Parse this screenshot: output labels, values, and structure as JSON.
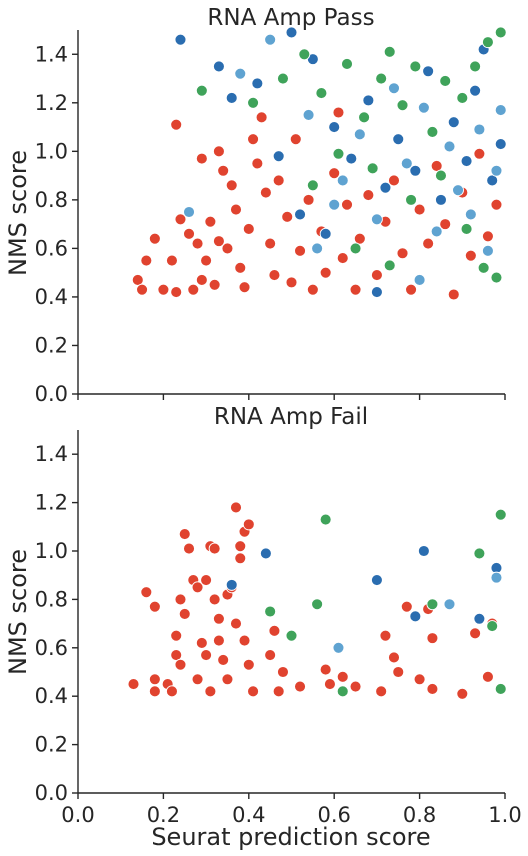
{
  "colors": {
    "red": "#e0432f",
    "green": "#3fa35a",
    "dark_blue": "#2a6db0",
    "light_blue": "#5fa3d1"
  },
  "chart_data": [
    {
      "type": "scatter",
      "title": "RNA Amp Pass",
      "ylabel": "NMS score",
      "xlabel": "",
      "xlim": [
        0.0,
        1.0
      ],
      "ylim": [
        0.0,
        1.5
      ],
      "xticks": [
        "0.0",
        "0.2",
        "0.4",
        "0.6",
        "0.8",
        "1.0"
      ],
      "yticks": [
        "0.0",
        "0.2",
        "0.4",
        "0.6",
        "0.8",
        "1.0",
        "1.2",
        "1.4"
      ],
      "show_xtick_labels": false,
      "grid": false,
      "points": [
        {
          "x": 0.16,
          "y": 0.55,
          "c": "red"
        },
        {
          "x": 0.14,
          "y": 0.47,
          "c": "red"
        },
        {
          "x": 0.15,
          "y": 0.43,
          "c": "red"
        },
        {
          "x": 0.18,
          "y": 0.64,
          "c": "red"
        },
        {
          "x": 0.2,
          "y": 0.43,
          "c": "red"
        },
        {
          "x": 0.22,
          "y": 0.55,
          "c": "red"
        },
        {
          "x": 0.23,
          "y": 0.42,
          "c": "red"
        },
        {
          "x": 0.24,
          "y": 0.72,
          "c": "red"
        },
        {
          "x": 0.26,
          "y": 0.66,
          "c": "red"
        },
        {
          "x": 0.28,
          "y": 0.62,
          "c": "red"
        },
        {
          "x": 0.27,
          "y": 0.43,
          "c": "red"
        },
        {
          "x": 0.29,
          "y": 0.47,
          "c": "red"
        },
        {
          "x": 0.3,
          "y": 0.55,
          "c": "red"
        },
        {
          "x": 0.31,
          "y": 0.71,
          "c": "red"
        },
        {
          "x": 0.33,
          "y": 0.63,
          "c": "red"
        },
        {
          "x": 0.32,
          "y": 0.45,
          "c": "red"
        },
        {
          "x": 0.35,
          "y": 0.6,
          "c": "red"
        },
        {
          "x": 0.36,
          "y": 0.86,
          "c": "red"
        },
        {
          "x": 0.34,
          "y": 0.92,
          "c": "red"
        },
        {
          "x": 0.37,
          "y": 0.76,
          "c": "red"
        },
        {
          "x": 0.38,
          "y": 0.52,
          "c": "red"
        },
        {
          "x": 0.39,
          "y": 0.44,
          "c": "red"
        },
        {
          "x": 0.4,
          "y": 0.68,
          "c": "red"
        },
        {
          "x": 0.41,
          "y": 1.05,
          "c": "red"
        },
        {
          "x": 0.42,
          "y": 0.95,
          "c": "red"
        },
        {
          "x": 0.44,
          "y": 0.83,
          "c": "red"
        },
        {
          "x": 0.45,
          "y": 0.62,
          "c": "red"
        },
        {
          "x": 0.46,
          "y": 0.49,
          "c": "red"
        },
        {
          "x": 0.47,
          "y": 0.88,
          "c": "red"
        },
        {
          "x": 0.49,
          "y": 0.73,
          "c": "red"
        },
        {
          "x": 0.5,
          "y": 0.46,
          "c": "red"
        },
        {
          "x": 0.52,
          "y": 0.59,
          "c": "red"
        },
        {
          "x": 0.54,
          "y": 0.8,
          "c": "red"
        },
        {
          "x": 0.55,
          "y": 0.43,
          "c": "red"
        },
        {
          "x": 0.57,
          "y": 0.67,
          "c": "red"
        },
        {
          "x": 0.58,
          "y": 0.5,
          "c": "red"
        },
        {
          "x": 0.6,
          "y": 0.91,
          "c": "red"
        },
        {
          "x": 0.62,
          "y": 0.56,
          "c": "red"
        },
        {
          "x": 0.63,
          "y": 0.78,
          "c": "red"
        },
        {
          "x": 0.65,
          "y": 0.43,
          "c": "red"
        },
        {
          "x": 0.66,
          "y": 0.64,
          "c": "red"
        },
        {
          "x": 0.68,
          "y": 0.82,
          "c": "red"
        },
        {
          "x": 0.7,
          "y": 0.49,
          "c": "red"
        },
        {
          "x": 0.72,
          "y": 0.71,
          "c": "red"
        },
        {
          "x": 0.74,
          "y": 0.88,
          "c": "red"
        },
        {
          "x": 0.76,
          "y": 0.58,
          "c": "red"
        },
        {
          "x": 0.78,
          "y": 0.43,
          "c": "red"
        },
        {
          "x": 0.8,
          "y": 0.76,
          "c": "red"
        },
        {
          "x": 0.82,
          "y": 0.62,
          "c": "red"
        },
        {
          "x": 0.84,
          "y": 0.94,
          "c": "red"
        },
        {
          "x": 0.86,
          "y": 0.7,
          "c": "red"
        },
        {
          "x": 0.88,
          "y": 0.41,
          "c": "red"
        },
        {
          "x": 0.9,
          "y": 0.83,
          "c": "red"
        },
        {
          "x": 0.92,
          "y": 0.57,
          "c": "red"
        },
        {
          "x": 0.94,
          "y": 0.99,
          "c": "red"
        },
        {
          "x": 0.96,
          "y": 0.65,
          "c": "red"
        },
        {
          "x": 0.98,
          "y": 0.78,
          "c": "red"
        },
        {
          "x": 0.23,
          "y": 1.11,
          "c": "red"
        },
        {
          "x": 0.29,
          "y": 0.97,
          "c": "red"
        },
        {
          "x": 0.33,
          "y": 1.0,
          "c": "red"
        },
        {
          "x": 0.43,
          "y": 1.14,
          "c": "red"
        },
        {
          "x": 0.51,
          "y": 1.05,
          "c": "red"
        },
        {
          "x": 0.61,
          "y": 1.16,
          "c": "red"
        },
        {
          "x": 0.24,
          "y": 1.46,
          "c": "dark_blue"
        },
        {
          "x": 0.33,
          "y": 1.35,
          "c": "dark_blue"
        },
        {
          "x": 0.36,
          "y": 1.22,
          "c": "dark_blue"
        },
        {
          "x": 0.42,
          "y": 1.28,
          "c": "dark_blue"
        },
        {
          "x": 0.5,
          "y": 1.49,
          "c": "dark_blue"
        },
        {
          "x": 0.55,
          "y": 1.38,
          "c": "dark_blue"
        },
        {
          "x": 0.6,
          "y": 1.1,
          "c": "dark_blue"
        },
        {
          "x": 0.64,
          "y": 0.97,
          "c": "dark_blue"
        },
        {
          "x": 0.68,
          "y": 1.21,
          "c": "dark_blue"
        },
        {
          "x": 0.72,
          "y": 0.85,
          "c": "dark_blue"
        },
        {
          "x": 0.75,
          "y": 1.05,
          "c": "dark_blue"
        },
        {
          "x": 0.79,
          "y": 0.92,
          "c": "dark_blue"
        },
        {
          "x": 0.82,
          "y": 1.33,
          "c": "dark_blue"
        },
        {
          "x": 0.85,
          "y": 0.8,
          "c": "dark_blue"
        },
        {
          "x": 0.88,
          "y": 1.12,
          "c": "dark_blue"
        },
        {
          "x": 0.91,
          "y": 0.96,
          "c": "dark_blue"
        },
        {
          "x": 0.93,
          "y": 1.25,
          "c": "dark_blue"
        },
        {
          "x": 0.95,
          "y": 1.42,
          "c": "dark_blue"
        },
        {
          "x": 0.97,
          "y": 0.88,
          "c": "dark_blue"
        },
        {
          "x": 0.99,
          "y": 1.03,
          "c": "dark_blue"
        },
        {
          "x": 0.7,
          "y": 0.42,
          "c": "dark_blue"
        },
        {
          "x": 0.52,
          "y": 0.74,
          "c": "dark_blue"
        },
        {
          "x": 0.58,
          "y": 0.66,
          "c": "dark_blue"
        },
        {
          "x": 0.47,
          "y": 0.98,
          "c": "dark_blue"
        },
        {
          "x": 0.26,
          "y": 0.75,
          "c": "light_blue"
        },
        {
          "x": 0.38,
          "y": 1.32,
          "c": "light_blue"
        },
        {
          "x": 0.45,
          "y": 1.46,
          "c": "light_blue"
        },
        {
          "x": 0.54,
          "y": 1.15,
          "c": "light_blue"
        },
        {
          "x": 0.62,
          "y": 0.88,
          "c": "light_blue"
        },
        {
          "x": 0.66,
          "y": 1.07,
          "c": "light_blue"
        },
        {
          "x": 0.7,
          "y": 0.72,
          "c": "light_blue"
        },
        {
          "x": 0.74,
          "y": 1.26,
          "c": "light_blue"
        },
        {
          "x": 0.77,
          "y": 0.95,
          "c": "light_blue"
        },
        {
          "x": 0.81,
          "y": 1.18,
          "c": "light_blue"
        },
        {
          "x": 0.84,
          "y": 0.67,
          "c": "light_blue"
        },
        {
          "x": 0.87,
          "y": 1.02,
          "c": "light_blue"
        },
        {
          "x": 0.89,
          "y": 0.84,
          "c": "light_blue"
        },
        {
          "x": 0.92,
          "y": 0.74,
          "c": "light_blue"
        },
        {
          "x": 0.94,
          "y": 1.09,
          "c": "light_blue"
        },
        {
          "x": 0.96,
          "y": 0.59,
          "c": "light_blue"
        },
        {
          "x": 0.98,
          "y": 0.92,
          "c": "light_blue"
        },
        {
          "x": 0.99,
          "y": 1.17,
          "c": "light_blue"
        },
        {
          "x": 0.56,
          "y": 0.6,
          "c": "light_blue"
        },
        {
          "x": 0.6,
          "y": 0.78,
          "c": "light_blue"
        },
        {
          "x": 0.8,
          "y": 0.47,
          "c": "light_blue"
        },
        {
          "x": 0.29,
          "y": 1.25,
          "c": "green"
        },
        {
          "x": 0.41,
          "y": 1.2,
          "c": "green"
        },
        {
          "x": 0.48,
          "y": 1.3,
          "c": "green"
        },
        {
          "x": 0.53,
          "y": 1.4,
          "c": "green"
        },
        {
          "x": 0.57,
          "y": 1.24,
          "c": "green"
        },
        {
          "x": 0.63,
          "y": 1.36,
          "c": "green"
        },
        {
          "x": 0.67,
          "y": 1.14,
          "c": "green"
        },
        {
          "x": 0.71,
          "y": 1.3,
          "c": "green"
        },
        {
          "x": 0.73,
          "y": 1.41,
          "c": "green"
        },
        {
          "x": 0.76,
          "y": 1.19,
          "c": "green"
        },
        {
          "x": 0.79,
          "y": 1.35,
          "c": "green"
        },
        {
          "x": 0.83,
          "y": 1.08,
          "c": "green"
        },
        {
          "x": 0.86,
          "y": 1.29,
          "c": "green"
        },
        {
          "x": 0.9,
          "y": 1.22,
          "c": "green"
        },
        {
          "x": 0.93,
          "y": 1.35,
          "c": "green"
        },
        {
          "x": 0.96,
          "y": 1.45,
          "c": "green"
        },
        {
          "x": 0.99,
          "y": 1.49,
          "c": "green"
        },
        {
          "x": 0.55,
          "y": 0.86,
          "c": "green"
        },
        {
          "x": 0.61,
          "y": 0.99,
          "c": "green"
        },
        {
          "x": 0.69,
          "y": 0.93,
          "c": "green"
        },
        {
          "x": 0.78,
          "y": 0.8,
          "c": "green"
        },
        {
          "x": 0.85,
          "y": 0.9,
          "c": "green"
        },
        {
          "x": 0.91,
          "y": 0.68,
          "c": "green"
        },
        {
          "x": 0.95,
          "y": 0.52,
          "c": "green"
        },
        {
          "x": 0.98,
          "y": 0.48,
          "c": "green"
        },
        {
          "x": 0.65,
          "y": 0.6,
          "c": "green"
        },
        {
          "x": 0.73,
          "y": 0.53,
          "c": "green"
        }
      ]
    },
    {
      "type": "scatter",
      "title": "RNA Amp Fail",
      "ylabel": "NMS score",
      "xlabel": "Seurat prediction score",
      "xlim": [
        0.0,
        1.0
      ],
      "ylim": [
        0.0,
        1.5
      ],
      "xticks": [
        "0.0",
        "0.2",
        "0.4",
        "0.6",
        "0.8",
        "1.0"
      ],
      "yticks": [
        "0.0",
        "0.2",
        "0.4",
        "0.6",
        "0.8",
        "1.0",
        "1.2",
        "1.4"
      ],
      "show_xtick_labels": true,
      "grid": false,
      "points": [
        {
          "x": 0.13,
          "y": 0.45,
          "c": "red"
        },
        {
          "x": 0.16,
          "y": 0.83,
          "c": "red"
        },
        {
          "x": 0.18,
          "y": 0.77,
          "c": "red"
        },
        {
          "x": 0.18,
          "y": 0.47,
          "c": "red"
        },
        {
          "x": 0.18,
          "y": 0.42,
          "c": "red"
        },
        {
          "x": 0.21,
          "y": 0.45,
          "c": "red"
        },
        {
          "x": 0.22,
          "y": 0.42,
          "c": "red"
        },
        {
          "x": 0.23,
          "y": 0.65,
          "c": "red"
        },
        {
          "x": 0.23,
          "y": 0.57,
          "c": "red"
        },
        {
          "x": 0.24,
          "y": 0.53,
          "c": "red"
        },
        {
          "x": 0.24,
          "y": 0.8,
          "c": "red"
        },
        {
          "x": 0.25,
          "y": 1.07,
          "c": "red"
        },
        {
          "x": 0.25,
          "y": 0.74,
          "c": "red"
        },
        {
          "x": 0.26,
          "y": 1.01,
          "c": "red"
        },
        {
          "x": 0.27,
          "y": 0.88,
          "c": "red"
        },
        {
          "x": 0.28,
          "y": 0.85,
          "c": "red"
        },
        {
          "x": 0.28,
          "y": 0.47,
          "c": "red"
        },
        {
          "x": 0.29,
          "y": 0.62,
          "c": "red"
        },
        {
          "x": 0.3,
          "y": 0.88,
          "c": "red"
        },
        {
          "x": 0.3,
          "y": 0.57,
          "c": "red"
        },
        {
          "x": 0.31,
          "y": 1.02,
          "c": "red"
        },
        {
          "x": 0.31,
          "y": 0.42,
          "c": "red"
        },
        {
          "x": 0.32,
          "y": 0.8,
          "c": "red"
        },
        {
          "x": 0.32,
          "y": 1.01,
          "c": "red"
        },
        {
          "x": 0.33,
          "y": 0.72,
          "c": "red"
        },
        {
          "x": 0.33,
          "y": 0.63,
          "c": "red"
        },
        {
          "x": 0.34,
          "y": 0.55,
          "c": "red"
        },
        {
          "x": 0.35,
          "y": 0.82,
          "c": "red"
        },
        {
          "x": 0.35,
          "y": 0.47,
          "c": "red"
        },
        {
          "x": 0.36,
          "y": 0.85,
          "c": "red"
        },
        {
          "x": 0.37,
          "y": 1.18,
          "c": "red"
        },
        {
          "x": 0.37,
          "y": 0.7,
          "c": "red"
        },
        {
          "x": 0.38,
          "y": 0.97,
          "c": "red"
        },
        {
          "x": 0.38,
          "y": 1.02,
          "c": "red"
        },
        {
          "x": 0.39,
          "y": 1.08,
          "c": "red"
        },
        {
          "x": 0.39,
          "y": 0.63,
          "c": "red"
        },
        {
          "x": 0.4,
          "y": 1.11,
          "c": "red"
        },
        {
          "x": 0.4,
          "y": 0.53,
          "c": "red"
        },
        {
          "x": 0.41,
          "y": 0.42,
          "c": "red"
        },
        {
          "x": 0.45,
          "y": 0.57,
          "c": "red"
        },
        {
          "x": 0.46,
          "y": 0.67,
          "c": "red"
        },
        {
          "x": 0.47,
          "y": 0.42,
          "c": "red"
        },
        {
          "x": 0.48,
          "y": 0.5,
          "c": "red"
        },
        {
          "x": 0.52,
          "y": 0.44,
          "c": "red"
        },
        {
          "x": 0.58,
          "y": 0.51,
          "c": "red"
        },
        {
          "x": 0.59,
          "y": 0.45,
          "c": "red"
        },
        {
          "x": 0.62,
          "y": 0.48,
          "c": "red"
        },
        {
          "x": 0.65,
          "y": 0.44,
          "c": "red"
        },
        {
          "x": 0.71,
          "y": 0.42,
          "c": "red"
        },
        {
          "x": 0.72,
          "y": 0.65,
          "c": "red"
        },
        {
          "x": 0.74,
          "y": 0.56,
          "c": "red"
        },
        {
          "x": 0.75,
          "y": 0.5,
          "c": "red"
        },
        {
          "x": 0.77,
          "y": 0.77,
          "c": "red"
        },
        {
          "x": 0.8,
          "y": 0.47,
          "c": "red"
        },
        {
          "x": 0.82,
          "y": 0.76,
          "c": "red"
        },
        {
          "x": 0.83,
          "y": 0.64,
          "c": "red"
        },
        {
          "x": 0.83,
          "y": 0.43,
          "c": "red"
        },
        {
          "x": 0.9,
          "y": 0.41,
          "c": "red"
        },
        {
          "x": 0.93,
          "y": 0.66,
          "c": "red"
        },
        {
          "x": 0.96,
          "y": 0.48,
          "c": "red"
        },
        {
          "x": 0.97,
          "y": 0.7,
          "c": "red"
        },
        {
          "x": 0.36,
          "y": 0.86,
          "c": "dark_blue"
        },
        {
          "x": 0.44,
          "y": 0.99,
          "c": "dark_blue"
        },
        {
          "x": 0.7,
          "y": 0.88,
          "c": "dark_blue"
        },
        {
          "x": 0.79,
          "y": 0.73,
          "c": "dark_blue"
        },
        {
          "x": 0.81,
          "y": 1.0,
          "c": "dark_blue"
        },
        {
          "x": 0.94,
          "y": 0.72,
          "c": "dark_blue"
        },
        {
          "x": 0.98,
          "y": 0.93,
          "c": "dark_blue"
        },
        {
          "x": 0.61,
          "y": 0.6,
          "c": "light_blue"
        },
        {
          "x": 0.87,
          "y": 0.78,
          "c": "light_blue"
        },
        {
          "x": 0.98,
          "y": 0.89,
          "c": "light_blue"
        },
        {
          "x": 0.45,
          "y": 0.75,
          "c": "green"
        },
        {
          "x": 0.5,
          "y": 0.65,
          "c": "green"
        },
        {
          "x": 0.56,
          "y": 0.78,
          "c": "green"
        },
        {
          "x": 0.58,
          "y": 1.13,
          "c": "green"
        },
        {
          "x": 0.62,
          "y": 0.42,
          "c": "green"
        },
        {
          "x": 0.83,
          "y": 0.78,
          "c": "green"
        },
        {
          "x": 0.94,
          "y": 0.99,
          "c": "green"
        },
        {
          "x": 0.97,
          "y": 0.69,
          "c": "green"
        },
        {
          "x": 0.99,
          "y": 1.15,
          "c": "green"
        },
        {
          "x": 0.99,
          "y": 0.43,
          "c": "green"
        }
      ]
    }
  ]
}
